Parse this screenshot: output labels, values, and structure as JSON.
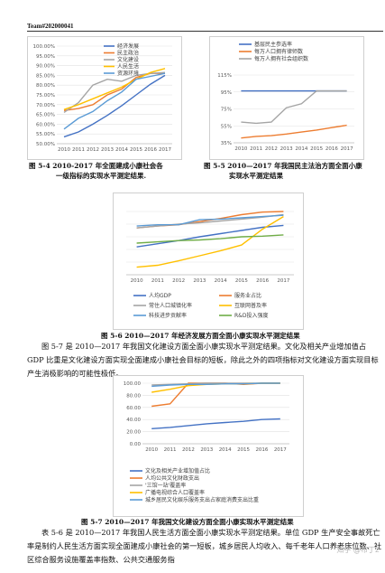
{
  "header": {
    "team": "Team#202000041"
  },
  "colors": {
    "blue": "#4472c4",
    "orange": "#ed7d31",
    "gray": "#a5a5a5",
    "yellow": "#ffc000",
    "lightblue": "#5b9bd5",
    "green": "#70ad47",
    "navy": "#264478"
  },
  "fig4": {
    "caption_line1": "图 5-4   2010-2017 年全面建成小康社会各",
    "caption_line2": "一级指标的实现水平测定结果."
  },
  "fig5": {
    "caption_line1": "图 5-5 2010—2017 年我国民主法治方面全面小康",
    "caption_line2": "实现水平测定结果"
  },
  "fig6": {
    "caption": "图 5-6 2010—2017 年经济发展方面全面小康实现水平测定结果"
  },
  "para1": "图 5-7 是 2010—2017 年我国文化建设方面全面小康实现水平测定结果。文化及相关产业增加值占 GDP 比重是文化建设方面实现全面建成小康社会目标的短板，除此之外的四项指标对文化建设方面实现目标产生消极影响的可能性极低。",
  "fig7": {
    "caption": "图 5-7 2010—2017  年我国文化建设方面全面小康实现水平测定结果"
  },
  "para2": "表 5-6 是 2010—2017 年我国人民生活方面全面小康实现水平测定结果。单位 GDP 生产安全事故死亡率是制约人民生活方面实现全面建成小康社会的第一短板，城乡居民人均收入、每千老年人口养老床位数、社区综合服务设施覆盖率指数、公共交通服务指",
  "watermark": "知乎 @布丁2",
  "chart_data": [
    {
      "id": "fig4",
      "type": "line",
      "x": [
        "2010",
        "2011",
        "2012",
        "2013",
        "2014",
        "2015",
        "2016",
        "2017"
      ],
      "ylim": [
        50,
        100
      ],
      "yticks": [
        "100.00%",
        "95.00%",
        "90.00%",
        "85.00%",
        "80.00%",
        "75.00%",
        "70.00%",
        "65.00%",
        "60.00%",
        "55.00%",
        "50.00%"
      ],
      "legend_position": "top-right",
      "series": [
        {
          "name": "经济发展",
          "color": "#4472c4",
          "values": [
            53.5,
            56,
            60,
            64.5,
            69.5,
            75,
            80.5,
            85
          ]
        },
        {
          "name": "民主政治",
          "color": "#ed7d31",
          "values": [
            67,
            68,
            70,
            75,
            78,
            84,
            86,
            86
          ]
        },
        {
          "name": "文化建设",
          "color": "#a5a5a5",
          "values": [
            66,
            71,
            80,
            83,
            82,
            85,
            86,
            86.5
          ]
        },
        {
          "name": "人民生活",
          "color": "#ffc000",
          "values": [
            67.5,
            70,
            73,
            76,
            79,
            83,
            86.5,
            88.5
          ]
        },
        {
          "name": "资源环境",
          "color": "#5b9bd5",
          "values": [
            57.5,
            63,
            66.5,
            72,
            76.5,
            83,
            84.5,
            86
          ]
        }
      ]
    },
    {
      "id": "fig5",
      "type": "line",
      "x": [
        "2010",
        "2011",
        "2012",
        "2013",
        "2014",
        "2015",
        "2016",
        "2017"
      ],
      "ylim": [
        35,
        120
      ],
      "yticks": [
        "115%",
        "95%",
        "75%",
        "55%",
        "35%"
      ],
      "legend_position": "top",
      "series": [
        {
          "name": "基层民主参选率",
          "color": "#4472c4",
          "values": [
            100,
            100,
            100,
            100,
            100,
            100,
            100,
            100
          ]
        },
        {
          "name": "每万人口拥有律师数",
          "color": "#ed7d31",
          "values": [
            41,
            43,
            44,
            46,
            48.5,
            51,
            54,
            57
          ]
        },
        {
          "name": "每万人拥有社会组织数",
          "color": "#a5a5a5",
          "values": [
            61,
            59.5,
            61,
            79,
            84,
            100,
            100,
            100
          ]
        }
      ]
    },
    {
      "id": "fig6",
      "type": "line",
      "x": [
        "2010",
        "2011",
        "2012",
        "2013",
        "2014",
        "2015",
        "2016",
        "2017"
      ],
      "ylim": [
        0,
        100
      ],
      "legend_position": "bottom",
      "series": [
        {
          "name": "人均GDP",
          "color": "#4472c4",
          "values": [
            44,
            49,
            54,
            60,
            65,
            70,
            75,
            78
          ]
        },
        {
          "name": "服务业占比",
          "color": "#ed7d31",
          "values": [
            74,
            77,
            79,
            84,
            89,
            95,
            99,
            100
          ]
        },
        {
          "name": "常住人口城镇化率",
          "color": "#a5a5a5",
          "values": [
            74,
            77,
            80,
            82,
            85,
            88,
            91,
            95
          ]
        },
        {
          "name": "互联网普及率",
          "color": "#ffc000",
          "values": [
            12,
            15,
            22,
            30,
            38,
            47,
            72,
            92
          ]
        },
        {
          "name": "科技进步贡献率",
          "color": "#5b9bd5",
          "values": [
            77,
            79,
            79,
            87,
            88,
            90,
            92,
            94
          ]
        },
        {
          "name": "R&D投入强度",
          "color": "#70ad47",
          "values": [
            50,
            52,
            54,
            55,
            57,
            60,
            61,
            63
          ]
        }
      ]
    },
    {
      "id": "fig7",
      "type": "line",
      "x": [
        "2010",
        "2011",
        "2012",
        "2013",
        "2014",
        "2015",
        "2016",
        "2017"
      ],
      "ylim": [
        0,
        100
      ],
      "yticks": [
        "100.00",
        "80.00",
        "60.00",
        "40.00",
        "20.00",
        "0.00"
      ],
      "legend_position": "bottom",
      "series": [
        {
          "name": "文化及相关产业增加值占比",
          "color": "#4472c4",
          "values": [
            25,
            27,
            30,
            33,
            35,
            37,
            40,
            41
          ]
        },
        {
          "name": "人均公共文化财政支出",
          "color": "#ed7d31",
          "values": [
            62,
            66,
            100,
            100,
            100,
            98,
            100,
            100
          ]
        },
        {
          "name": "'三馆一站'覆盖率",
          "color": "#a5a5a5",
          "values": [
            97,
            98,
            99,
            100,
            100,
            100,
            100,
            100
          ]
        },
        {
          "name": "广播电视综合人口覆盖率",
          "color": "#ffc000",
          "values": [
            85,
            90,
            96,
            98,
            99,
            99,
            100,
            100
          ]
        },
        {
          "name": "城乡居民文化娱乐服务支出占家庭消费支出比重",
          "color": "#5b9bd5",
          "values": [
            95,
            97,
            98,
            98,
            99,
            99,
            100,
            100
          ]
        }
      ]
    }
  ]
}
